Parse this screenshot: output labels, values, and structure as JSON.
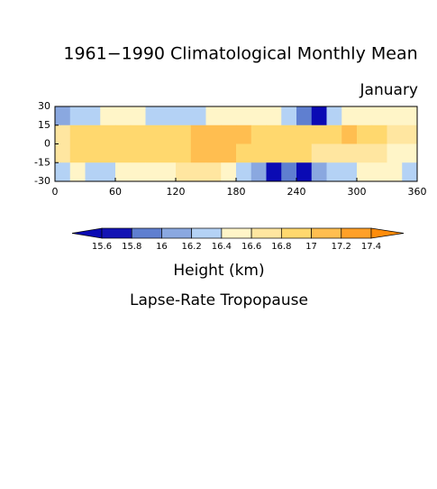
{
  "chart_data": {
    "type": "contour-map",
    "title": "1961−1990 Climatological Monthly Mean",
    "subtitle": "January",
    "xlim": [
      0,
      360
    ],
    "xticks": [
      0,
      60,
      120,
      180,
      240,
      300,
      360
    ],
    "ylim": [
      -30,
      30
    ],
    "yticks": [
      30,
      15,
      0,
      -15,
      -30
    ],
    "x": [
      7.5,
      22.5,
      37.5,
      52.5,
      67.5,
      82.5,
      97.5,
      112.5,
      127.5,
      142.5,
      157.5,
      172.5,
      187.5,
      202.5,
      217.5,
      232.5,
      247.5,
      262.5,
      277.5,
      292.5,
      307.5,
      322.5,
      337.5,
      352.5
    ],
    "y": [
      22.5,
      7.5,
      -7.5,
      -22.5
    ],
    "values": [
      [
        16.0,
        16.3,
        16.3,
        16.5,
        16.5,
        16.5,
        16.3,
        16.3,
        16.3,
        16.3,
        16.5,
        16.5,
        16.5,
        16.5,
        16.5,
        16.3,
        15.9,
        15.5,
        16.3,
        16.5,
        16.5,
        16.5,
        16.5,
        16.5
      ],
      [
        16.7,
        16.9,
        16.9,
        16.9,
        16.9,
        16.9,
        16.9,
        16.9,
        16.9,
        17.0,
        17.0,
        17.0,
        17.0,
        16.9,
        16.9,
        16.9,
        16.9,
        16.9,
        16.9,
        17.1,
        16.9,
        16.9,
        16.7,
        16.7
      ],
      [
        16.7,
        16.9,
        16.9,
        16.9,
        16.9,
        16.9,
        16.9,
        16.9,
        16.9,
        17.0,
        17.0,
        17.0,
        16.9,
        16.9,
        16.9,
        16.9,
        16.9,
        16.7,
        16.7,
        16.7,
        16.7,
        16.7,
        16.5,
        16.5
      ],
      [
        16.3,
        16.5,
        16.3,
        16.3,
        16.5,
        16.5,
        16.5,
        16.5,
        16.7,
        16.7,
        16.7,
        16.5,
        16.3,
        16.1,
        15.5,
        15.9,
        15.5,
        16.1,
        16.3,
        16.3,
        16.5,
        16.5,
        16.5,
        16.3
      ]
    ],
    "levels": [
      15.6,
      15.8,
      16,
      16.2,
      16.4,
      16.6,
      16.8,
      17,
      17.2,
      17.4
    ],
    "colors": [
      "#0a0ab4",
      "#1414b4",
      "#5f7fd0",
      "#8aa8e0",
      "#b4d2f5",
      "#fff5c8",
      "#ffe6a0",
      "#ffd86e",
      "#ffbe50",
      "#ffa028",
      "#ff8c0a"
    ],
    "colorbar_label": "Height (km)",
    "caption": "Lapse-Rate Tropopause"
  }
}
